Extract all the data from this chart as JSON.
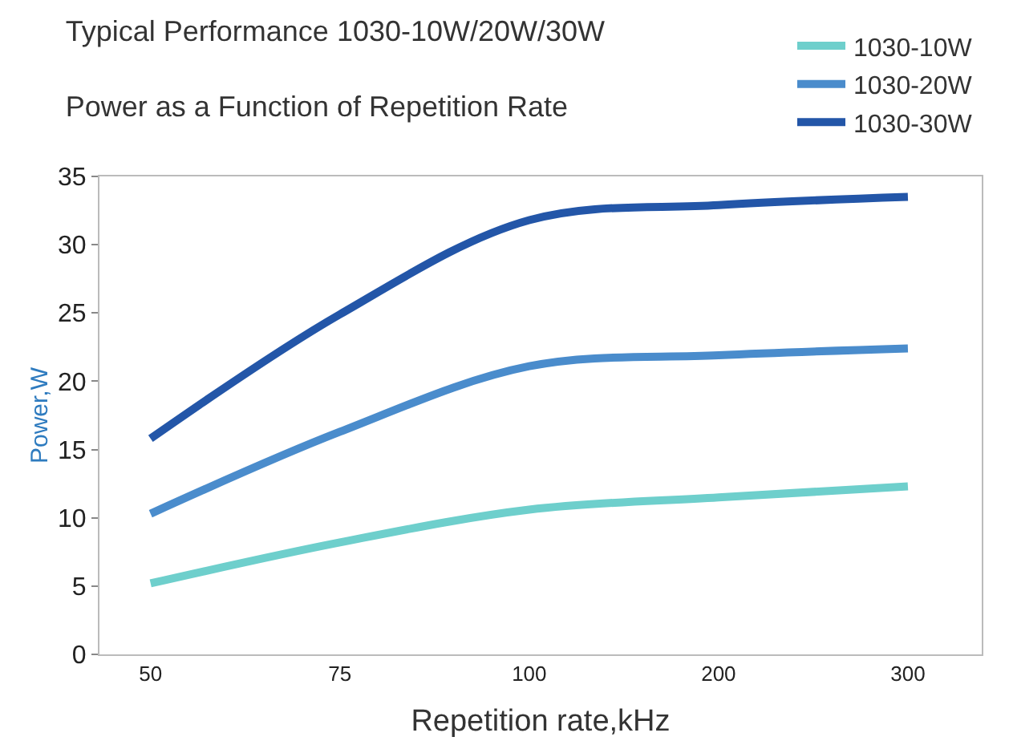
{
  "chart_data": {
    "type": "line",
    "title": "Typical Performance 1030-10W/20W/30W",
    "subtitle": "Power as a Function of Repetition Rate",
    "xlabel": "Repetition rate,kHz",
    "ylabel": "Power,W",
    "categories": [
      "50",
      "75",
      "100",
      "200",
      "300"
    ],
    "series": [
      {
        "name": "1030-10W",
        "color": "#6ecfcc",
        "values": [
          5.2,
          8.2,
          10.6,
          11.5,
          12.3
        ]
      },
      {
        "name": "1030-20W",
        "color": "#4a8ccc",
        "values": [
          10.3,
          16.3,
          21.1,
          21.9,
          22.4
        ]
      },
      {
        "name": "1030-30W",
        "color": "#2356a8",
        "values": [
          15.8,
          24.9,
          31.8,
          32.9,
          33.5
        ]
      }
    ],
    "ylim": [
      0,
      35
    ],
    "yticks": [
      0,
      5,
      10,
      15,
      20,
      25,
      30,
      35
    ],
    "legend": "top right",
    "marker": "none",
    "line_style": "solid"
  }
}
